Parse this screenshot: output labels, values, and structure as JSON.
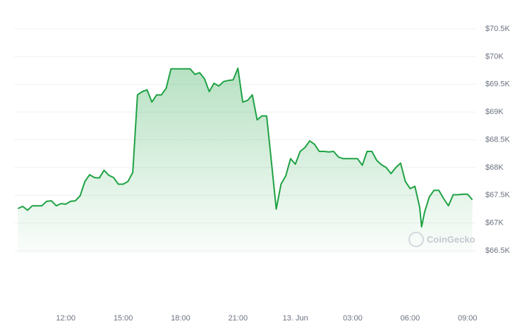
{
  "chart_data": {
    "type": "area",
    "watermark": "CoinGecko",
    "color": "#1fa244",
    "grid": true,
    "x": [
      9.5,
      9.75,
      10,
      10.25,
      10.5,
      10.75,
      11,
      11.25,
      11.5,
      11.75,
      12,
      12.25,
      12.5,
      12.75,
      13,
      13.25,
      13.5,
      13.75,
      14,
      14.25,
      14.5,
      14.75,
      15,
      15.25,
      15.5,
      15.75,
      16,
      16.25,
      16.5,
      16.75,
      17,
      17.25,
      17.5,
      17.75,
      18,
      18.25,
      18.5,
      18.75,
      19,
      19.25,
      19.5,
      19.75,
      20,
      20.25,
      20.5,
      20.75,
      21,
      21.25,
      21.5,
      21.75,
      22,
      22.25,
      22.5,
      22.75,
      23,
      23.25,
      23.5,
      23.75,
      24,
      24.25,
      24.5,
      24.75,
      25,
      25.25,
      25.5,
      25.75,
      26,
      26.25,
      26.5,
      26.75,
      27,
      27.25,
      27.5,
      27.75,
      28,
      28.25,
      28.5,
      28.75,
      29,
      29.25,
      29.5,
      29.75,
      30,
      30.25,
      30.5,
      30.6,
      30.75,
      31,
      31.25,
      31.5,
      31.75,
      32,
      32.25,
      32.5,
      32.75,
      33,
      33.25
    ],
    "values": [
      67260,
      67300,
      67230,
      67310,
      67310,
      67310,
      67390,
      67400,
      67310,
      67350,
      67340,
      67390,
      67400,
      67490,
      67750,
      67870,
      67820,
      67810,
      67950,
      67860,
      67820,
      67700,
      67700,
      67750,
      67910,
      69310,
      69370,
      69400,
      69180,
      69310,
      69310,
      69430,
      69780,
      69780,
      69780,
      69780,
      69780,
      69680,
      69710,
      69600,
      69370,
      69520,
      69470,
      69550,
      69570,
      69580,
      69790,
      69180,
      69210,
      69310,
      68860,
      68930,
      68930,
      68100,
      67250,
      67700,
      67850,
      68160,
      68060,
      68290,
      68360,
      68480,
      68420,
      68290,
      68290,
      68280,
      68290,
      68190,
      68160,
      68160,
      68160,
      68160,
      68040,
      68290,
      68290,
      68130,
      68050,
      68000,
      67890,
      68000,
      68080,
      67750,
      67620,
      67660,
      67280,
      66930,
      67190,
      67470,
      67590,
      67590,
      67440,
      67310,
      67510,
      67510,
      67520,
      67520,
      67420
    ],
    "xlim": [
      9.3,
      33.45
    ],
    "xticks": [
      {
        "value": 12,
        "label": "12:00"
      },
      {
        "value": 15,
        "label": "15:00"
      },
      {
        "value": 18,
        "label": "18:00"
      },
      {
        "value": 21,
        "label": "21:00"
      },
      {
        "value": 24,
        "label": "13. Jun"
      },
      {
        "value": 27,
        "label": "03:00"
      },
      {
        "value": 30,
        "label": "06:00"
      },
      {
        "value": 33,
        "label": "09:00"
      }
    ],
    "ylim": [
      66500,
      70500
    ],
    "yticks": [
      {
        "value": 66500,
        "label": "$66.5K"
      },
      {
        "value": 67000,
        "label": "$67K"
      },
      {
        "value": 67500,
        "label": "$67.5K"
      },
      {
        "value": 68000,
        "label": "$68K"
      },
      {
        "value": 68500,
        "label": "$68.5K"
      },
      {
        "value": 69000,
        "label": "$69K"
      },
      {
        "value": 69500,
        "label": "$69.5K"
      },
      {
        "value": 70000,
        "label": "$70K"
      },
      {
        "value": 70500,
        "label": "$70.5K"
      }
    ]
  }
}
